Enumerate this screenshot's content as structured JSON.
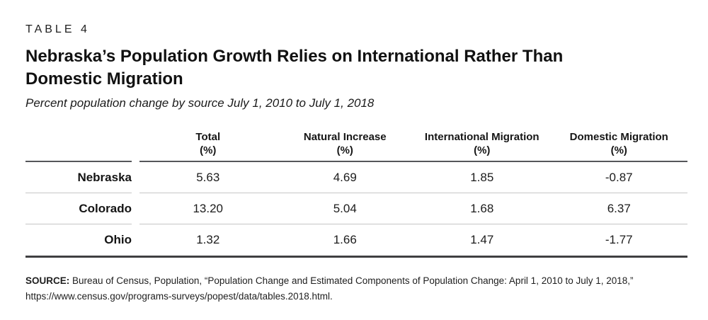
{
  "page": {
    "table_label": "TABLE 4",
    "title_line1": "Nebraska’s Population Growth Relies on International Rather Than",
    "title_line2": "Domestic Migration",
    "subtitle": "Percent population change by source July 1, 2010 to July 1, 2018"
  },
  "table": {
    "columns": [
      {
        "label": "Total",
        "unit": "(%)"
      },
      {
        "label": "Natural Increase",
        "unit": "(%)"
      },
      {
        "label": "International Migration",
        "unit": "(%)"
      },
      {
        "label": "Domestic Migration",
        "unit": "(%)"
      }
    ],
    "rows": [
      {
        "label": "Nebraska",
        "values": [
          "5.63",
          "4.69",
          "1.85",
          "-0.87"
        ]
      },
      {
        "label": "Colorado",
        "values": [
          "13.20",
          "5.04",
          "1.68",
          "6.37"
        ]
      },
      {
        "label": "Ohio",
        "values": [
          "1.32",
          "1.66",
          "1.47",
          "-1.77"
        ]
      }
    ]
  },
  "source": {
    "label": "SOURCE:",
    "text": " Bureau of Census, Population, “Population Change and Estimated Components of Population Change: April 1, 2010 to July 1, 2018,” https://www.census.gov/programs-surveys/popest/data/tables.2018.html."
  },
  "colors": {
    "rule_dark": "#55565a",
    "rule_light": "#c6c6c6",
    "rule_bottom": "#3f3f41",
    "text": "#1a1a1a"
  },
  "chart_data": {
    "type": "table",
    "title": "Nebraska’s Population Growth Relies on International Rather Than Domestic Migration",
    "subtitle": "Percent population change by source July 1, 2010 to July 1, 2018",
    "table_number": "TABLE 4",
    "columns": [
      "Total (%)",
      "Natural Increase (%)",
      "International Migration (%)",
      "Domestic Migration (%)"
    ],
    "row_labels": [
      "Nebraska",
      "Colorado",
      "Ohio"
    ],
    "values": [
      [
        5.63,
        4.69,
        1.85,
        -0.87
      ],
      [
        13.2,
        5.04,
        1.68,
        6.37
      ],
      [
        1.32,
        1.66,
        1.47,
        -1.77
      ]
    ],
    "source": "SOURCE: Bureau of Census, Population, “Population Change and Estimated Components of Population Change: April 1, 2010 to July 1, 2018,” https://www.census.gov/programs-surveys/popest/data/tables.2018.html."
  }
}
